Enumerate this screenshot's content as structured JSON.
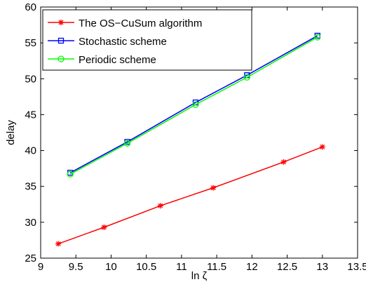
{
  "chart_data": {
    "type": "line",
    "x_label": "ln ζ",
    "y_label": "delay",
    "xlim": [
      9,
      13.5
    ],
    "xticks": [
      9,
      9.5,
      10,
      10.5,
      11,
      11.5,
      12,
      12.5,
      13,
      13.5
    ],
    "ylim": [
      25,
      60
    ],
    "yticks": [
      25,
      30,
      35,
      40,
      45,
      50,
      55,
      60
    ],
    "legend": "upper-left",
    "series": [
      {
        "name": "The OS−CuSum algorithm",
        "color": "#ff0000",
        "marker": "star",
        "x": [
          9.25,
          9.9,
          10.7,
          11.45,
          12.45,
          13.0
        ],
        "values": [
          27.0,
          29.3,
          32.3,
          34.8,
          38.4,
          40.5
        ]
      },
      {
        "name": "Stochastic scheme",
        "color": "#0000ff",
        "marker": "square",
        "x": [
          9.42,
          10.23,
          11.2,
          11.93,
          12.93
        ],
        "values": [
          36.9,
          41.2,
          46.7,
          50.5,
          56.0
        ]
      },
      {
        "name": "Periodic scheme",
        "color": "#00ff00",
        "marker": "circle",
        "x": [
          9.42,
          10.23,
          11.2,
          11.93,
          12.93
        ],
        "values": [
          36.7,
          41.0,
          46.4,
          50.2,
          55.8
        ]
      }
    ]
  }
}
